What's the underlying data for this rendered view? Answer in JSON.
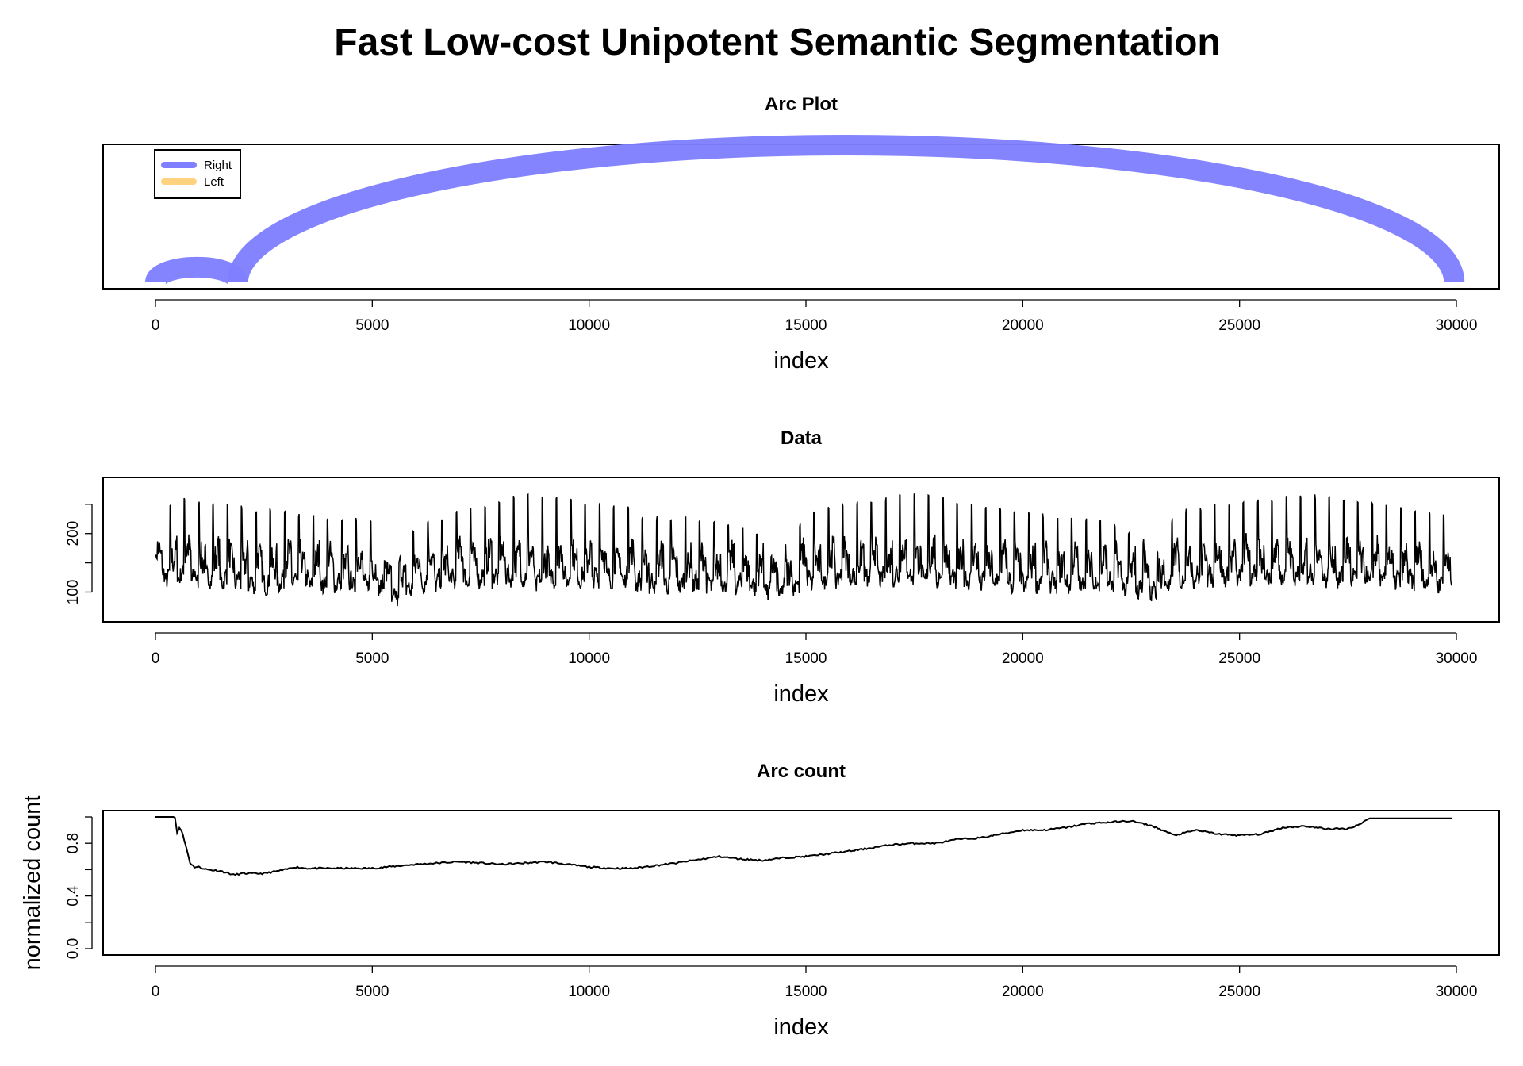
{
  "page_title": "Fast Low-cost Unipotent Semantic Segmentation",
  "colors": {
    "right_arc": "#7F7FFF",
    "left_arc": "#FFD27F",
    "line": "#000000"
  },
  "chart_data": [
    {
      "type": "arc",
      "title": "Arc Plot",
      "xlabel": "index",
      "ylabel": "",
      "xlim": [
        0,
        30000
      ],
      "x_ticks": [
        "0",
        "5000",
        "10000",
        "15000",
        "20000",
        "25000",
        "30000"
      ],
      "legend": {
        "position": "top-left",
        "entries": [
          "Right",
          "Left"
        ]
      },
      "arcs": [
        {
          "from": 0,
          "to": 1900,
          "direction": "Right"
        },
        {
          "from": 1900,
          "to": 29950,
          "direction": "Right"
        }
      ]
    },
    {
      "type": "line",
      "title": "Data",
      "xlabel": "index",
      "ylabel": "",
      "xlim": [
        0,
        30000
      ],
      "ylim": [
        60,
        285
      ],
      "x_ticks": [
        "0",
        "5000",
        "10000",
        "15000",
        "20000",
        "25000",
        "30000"
      ],
      "y_ticks": [
        "100",
        "200"
      ],
      "series": [
        {
          "envelope": {
            "x": [
              0,
              100,
              500,
              1000,
              2000,
              2500,
              2600,
              3000,
              4000,
              5000,
              5200,
              5500,
              6000,
              7000,
              8000,
              8500,
              8700,
              9000,
              10000,
              11000,
              11200,
              12000,
              13000,
              14000,
              14300,
              14500,
              15000,
              16000,
              17000,
              17500,
              17700,
              18000,
              19000,
              20000,
              21000,
              22000,
              22800,
              23000,
              23300,
              23500,
              24000,
              25000,
              26000,
              26500,
              27000,
              28000,
              29000,
              29900
            ],
            "upper": [
              160,
              240,
              265,
              255,
              250,
              235,
              245,
              240,
              230,
              225,
              160,
              140,
              215,
              240,
              260,
              270,
              275,
              265,
              255,
              245,
              230,
              230,
              225,
              200,
              150,
              180,
              235,
              255,
              265,
              270,
              270,
              265,
              250,
              240,
              230,
              225,
              190,
              160,
              195,
              240,
              245,
              255,
              265,
              270,
              265,
              255,
              245,
              230
            ],
            "lower": [
              110,
              110,
              115,
              110,
              105,
              95,
              100,
              105,
              100,
              100,
              95,
              72,
              100,
              108,
              110,
              112,
              100,
              108,
              110,
              108,
              100,
              100,
              100,
              95,
              80,
              90,
              105,
              110,
              112,
              115,
              112,
              110,
              105,
              100,
              100,
              100,
              90,
              82,
              95,
              105,
              110,
              112,
              115,
              112,
              110,
              108,
              105,
              100
            ]
          }
        }
      ]
    },
    {
      "type": "line",
      "title": "Arc count",
      "xlabel": "index",
      "ylabel": "normalized count",
      "xlim": [
        0,
        30000
      ],
      "ylim": [
        0,
        1
      ],
      "x_ticks": [
        "0",
        "5000",
        "10000",
        "15000",
        "20000",
        "25000",
        "30000"
      ],
      "y_ticks": [
        "0.0",
        "0.4",
        "0.8"
      ],
      "series": [
        {
          "x": [
            0,
            450,
            500,
            550,
            600,
            700,
            800,
            900,
            1000,
            1200,
            1500,
            1800,
            2000,
            2500,
            3000,
            3200,
            3500,
            4000,
            5000,
            6000,
            7000,
            8000,
            9000,
            10000,
            10500,
            11000,
            11500,
            12000,
            13000,
            13500,
            14000,
            14500,
            15000,
            16000,
            17000,
            17500,
            18000,
            18500,
            19000,
            19500,
            20000,
            20500,
            21000,
            21500,
            22000,
            22500,
            23000,
            23500,
            24000,
            24500,
            25000,
            25500,
            26000,
            26500,
            27000,
            27500,
            27800,
            28000,
            28500,
            29000,
            29900
          ],
          "y": [
            1.0,
            1.0,
            0.88,
            0.92,
            0.9,
            0.78,
            0.65,
            0.62,
            0.62,
            0.6,
            0.59,
            0.56,
            0.57,
            0.57,
            0.6,
            0.62,
            0.61,
            0.61,
            0.61,
            0.64,
            0.66,
            0.64,
            0.66,
            0.62,
            0.61,
            0.61,
            0.63,
            0.65,
            0.7,
            0.68,
            0.67,
            0.69,
            0.7,
            0.74,
            0.79,
            0.8,
            0.8,
            0.83,
            0.84,
            0.87,
            0.9,
            0.9,
            0.92,
            0.95,
            0.96,
            0.97,
            0.93,
            0.86,
            0.9,
            0.87,
            0.86,
            0.87,
            0.92,
            0.93,
            0.91,
            0.91,
            0.95,
            0.99,
            0.99,
            0.99,
            0.99
          ]
        }
      ]
    }
  ]
}
